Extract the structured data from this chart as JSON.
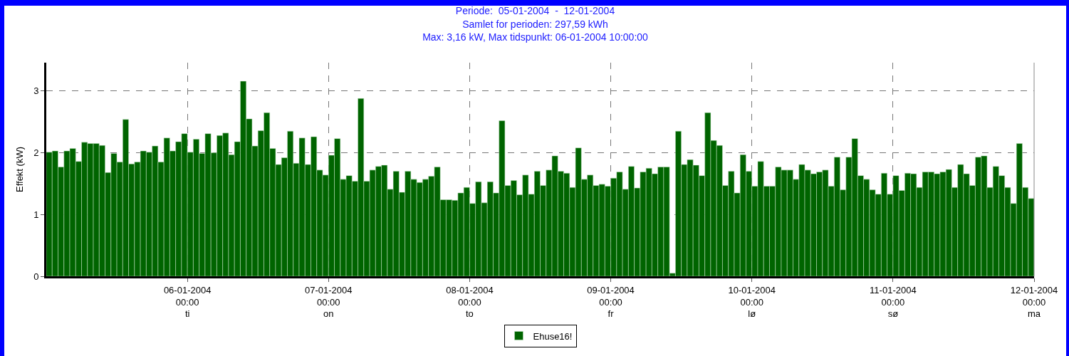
{
  "chart_data": {
    "type": "bar",
    "title": "Periode:  05-01-2004  -  12-01-2004\nSamlet for perioden: 297,59 kWh\nMax: 3,16 kW, Max tidspunkt: 06-01-2004 10:00:00",
    "ylabel": "Effekt (kW)",
    "x": [
      "2004-01-05T00:00",
      "2004-01-05T01:00",
      "2004-01-05T02:00",
      "2004-01-05T03:00",
      "2004-01-05T04:00",
      "2004-01-05T05:00",
      "2004-01-05T06:00",
      "2004-01-05T07:00",
      "2004-01-05T08:00",
      "2004-01-05T09:00",
      "2004-01-05T10:00",
      "2004-01-05T11:00",
      "2004-01-05T12:00",
      "2004-01-05T13:00",
      "2004-01-05T14:00",
      "2004-01-05T15:00",
      "2004-01-05T16:00",
      "2004-01-05T17:00",
      "2004-01-05T18:00",
      "2004-01-05T19:00",
      "2004-01-05T20:00",
      "2004-01-05T21:00",
      "2004-01-05T22:00",
      "2004-01-05T23:00",
      "2004-01-06T00:00",
      "2004-01-06T01:00",
      "2004-01-06T02:00",
      "2004-01-06T03:00",
      "2004-01-06T04:00",
      "2004-01-06T05:00",
      "2004-01-06T06:00",
      "2004-01-06T07:00",
      "2004-01-06T08:00",
      "2004-01-06T09:00",
      "2004-01-06T10:00",
      "2004-01-06T11:00",
      "2004-01-06T12:00",
      "2004-01-06T13:00",
      "2004-01-06T14:00",
      "2004-01-06T15:00",
      "2004-01-06T16:00",
      "2004-01-06T17:00",
      "2004-01-06T18:00",
      "2004-01-06T19:00",
      "2004-01-06T20:00",
      "2004-01-06T21:00",
      "2004-01-06T22:00",
      "2004-01-06T23:00",
      "2004-01-07T00:00",
      "2004-01-07T01:00",
      "2004-01-07T02:00",
      "2004-01-07T03:00",
      "2004-01-07T04:00",
      "2004-01-07T05:00",
      "2004-01-07T06:00",
      "2004-01-07T07:00",
      "2004-01-07T08:00",
      "2004-01-07T09:00",
      "2004-01-07T10:00",
      "2004-01-07T11:00",
      "2004-01-07T12:00",
      "2004-01-07T13:00",
      "2004-01-07T14:00",
      "2004-01-07T15:00",
      "2004-01-07T16:00",
      "2004-01-07T17:00",
      "2004-01-07T18:00",
      "2004-01-07T19:00",
      "2004-01-07T20:00",
      "2004-01-07T21:00",
      "2004-01-07T22:00",
      "2004-01-07T23:00",
      "2004-01-08T00:00",
      "2004-01-08T01:00",
      "2004-01-08T02:00",
      "2004-01-08T03:00",
      "2004-01-08T04:00",
      "2004-01-08T05:00",
      "2004-01-08T06:00",
      "2004-01-08T07:00",
      "2004-01-08T08:00",
      "2004-01-08T09:00",
      "2004-01-08T10:00",
      "2004-01-08T11:00",
      "2004-01-08T12:00",
      "2004-01-08T13:00",
      "2004-01-08T14:00",
      "2004-01-08T15:00",
      "2004-01-08T16:00",
      "2004-01-08T17:00",
      "2004-01-08T18:00",
      "2004-01-08T19:00",
      "2004-01-08T20:00",
      "2004-01-08T21:00",
      "2004-01-08T22:00",
      "2004-01-08T23:00",
      "2004-01-09T00:00",
      "2004-01-09T01:00",
      "2004-01-09T02:00",
      "2004-01-09T03:00",
      "2004-01-09T04:00",
      "2004-01-09T05:00",
      "2004-01-09T06:00",
      "2004-01-09T07:00",
      "2004-01-09T08:00",
      "2004-01-09T09:00",
      "2004-01-09T10:00",
      "2004-01-09T11:00",
      "2004-01-09T12:00",
      "2004-01-09T13:00",
      "2004-01-09T14:00",
      "2004-01-09T15:00",
      "2004-01-09T16:00",
      "2004-01-09T17:00",
      "2004-01-09T18:00",
      "2004-01-09T19:00",
      "2004-01-09T20:00",
      "2004-01-09T21:00",
      "2004-01-09T22:00",
      "2004-01-09T23:00",
      "2004-01-10T00:00",
      "2004-01-10T01:00",
      "2004-01-10T02:00",
      "2004-01-10T03:00",
      "2004-01-10T04:00",
      "2004-01-10T05:00",
      "2004-01-10T06:00",
      "2004-01-10T07:00",
      "2004-01-10T08:00",
      "2004-01-10T09:00",
      "2004-01-10T10:00",
      "2004-01-10T11:00",
      "2004-01-10T12:00",
      "2004-01-10T13:00",
      "2004-01-10T14:00",
      "2004-01-10T15:00",
      "2004-01-10T16:00",
      "2004-01-10T17:00",
      "2004-01-10T18:00",
      "2004-01-10T19:00",
      "2004-01-10T20:00",
      "2004-01-10T21:00",
      "2004-01-10T22:00",
      "2004-01-10T23:00",
      "2004-01-11T00:00",
      "2004-01-11T01:00",
      "2004-01-11T02:00",
      "2004-01-11T03:00",
      "2004-01-11T04:00",
      "2004-01-11T05:00",
      "2004-01-11T06:00",
      "2004-01-11T07:00",
      "2004-01-11T08:00",
      "2004-01-11T09:00",
      "2004-01-11T10:00",
      "2004-01-11T11:00",
      "2004-01-11T12:00",
      "2004-01-11T13:00",
      "2004-01-11T14:00",
      "2004-01-11T15:00",
      "2004-01-11T16:00",
      "2004-01-11T17:00",
      "2004-01-11T18:00",
      "2004-01-11T19:00",
      "2004-01-11T20:00",
      "2004-01-11T21:00",
      "2004-01-11T22:00",
      "2004-01-11T23:00"
    ],
    "series": [
      {
        "name": "Ehuse16!",
        "color": "#006400",
        "values": [
          2.01,
          2.03,
          1.77,
          2.03,
          2.07,
          1.86,
          2.17,
          2.15,
          2.15,
          2.12,
          1.68,
          1.99,
          1.85,
          2.54,
          1.82,
          1.85,
          2.03,
          2.01,
          2.11,
          1.85,
          2.24,
          2.03,
          2.18,
          2.31,
          2.01,
          2.22,
          1.99,
          2.31,
          2.0,
          2.28,
          2.32,
          1.97,
          2.18,
          3.16,
          2.55,
          2.11,
          2.36,
          2.65,
          2.07,
          1.81,
          1.92,
          2.35,
          1.83,
          2.24,
          1.81,
          2.26,
          1.72,
          1.64,
          1.96,
          2.23,
          1.57,
          1.63,
          1.54,
          2.88,
          1.54,
          1.72,
          1.78,
          1.8,
          1.41,
          1.7,
          1.36,
          1.7,
          1.57,
          1.52,
          1.57,
          1.62,
          1.77,
          1.24,
          1.24,
          1.23,
          1.35,
          1.44,
          1.18,
          1.53,
          1.19,
          1.53,
          1.35,
          2.52,
          1.47,
          1.55,
          1.32,
          1.64,
          1.33,
          1.7,
          1.47,
          1.72,
          1.95,
          1.7,
          1.67,
          1.44,
          2.08,
          1.57,
          1.64,
          1.47,
          1.49,
          1.46,
          1.59,
          1.69,
          1.41,
          1.78,
          1.43,
          1.69,
          1.75,
          1.66,
          1.77,
          1.77,
          0.05,
          2.35,
          1.81,
          1.89,
          1.8,
          1.63,
          2.65,
          2.2,
          2.12,
          1.47,
          1.7,
          1.35,
          1.97,
          1.7,
          1.46,
          1.86,
          1.46,
          1.46,
          1.77,
          1.72,
          1.72,
          1.57,
          1.81,
          1.72,
          1.66,
          1.69,
          1.72,
          1.46,
          1.93,
          1.4,
          1.93,
          2.23,
          1.63,
          1.57,
          1.4,
          1.33,
          1.67,
          1.33,
          1.63,
          1.39,
          1.67,
          1.66,
          1.44,
          1.69,
          1.69,
          1.66,
          1.69,
          1.73,
          1.44,
          1.81,
          1.66,
          1.47,
          1.93,
          1.95,
          1.44,
          1.78,
          1.63,
          1.44,
          1.18,
          2.15,
          1.44,
          1.26
        ]
      }
    ],
    "xlim": [
      "2004-01-05T00:00",
      "2004-01-12T00:00"
    ],
    "xticks": [
      {
        "value": "2004-01-06T00:00",
        "label": "06-01-2004\n00:00\nti"
      },
      {
        "value": "2004-01-07T00:00",
        "label": "07-01-2004\n00:00\non"
      },
      {
        "value": "2004-01-08T00:00",
        "label": "08-01-2004\n00:00\nto"
      },
      {
        "value": "2004-01-09T00:00",
        "label": "09-01-2004\n00:00\nfr"
      },
      {
        "value": "2004-01-10T00:00",
        "label": "10-01-2004\n00:00\nlø"
      },
      {
        "value": "2004-01-11T00:00",
        "label": "11-01-2004\n00:00\nsø"
      },
      {
        "value": "2004-01-12T00:00",
        "label": "12-01-2004\n00:00\nma"
      }
    ],
    "ylim": [
      0,
      3.46
    ],
    "yticks": [
      0,
      1,
      2,
      3
    ],
    "grid": true,
    "legend": "bottom"
  }
}
